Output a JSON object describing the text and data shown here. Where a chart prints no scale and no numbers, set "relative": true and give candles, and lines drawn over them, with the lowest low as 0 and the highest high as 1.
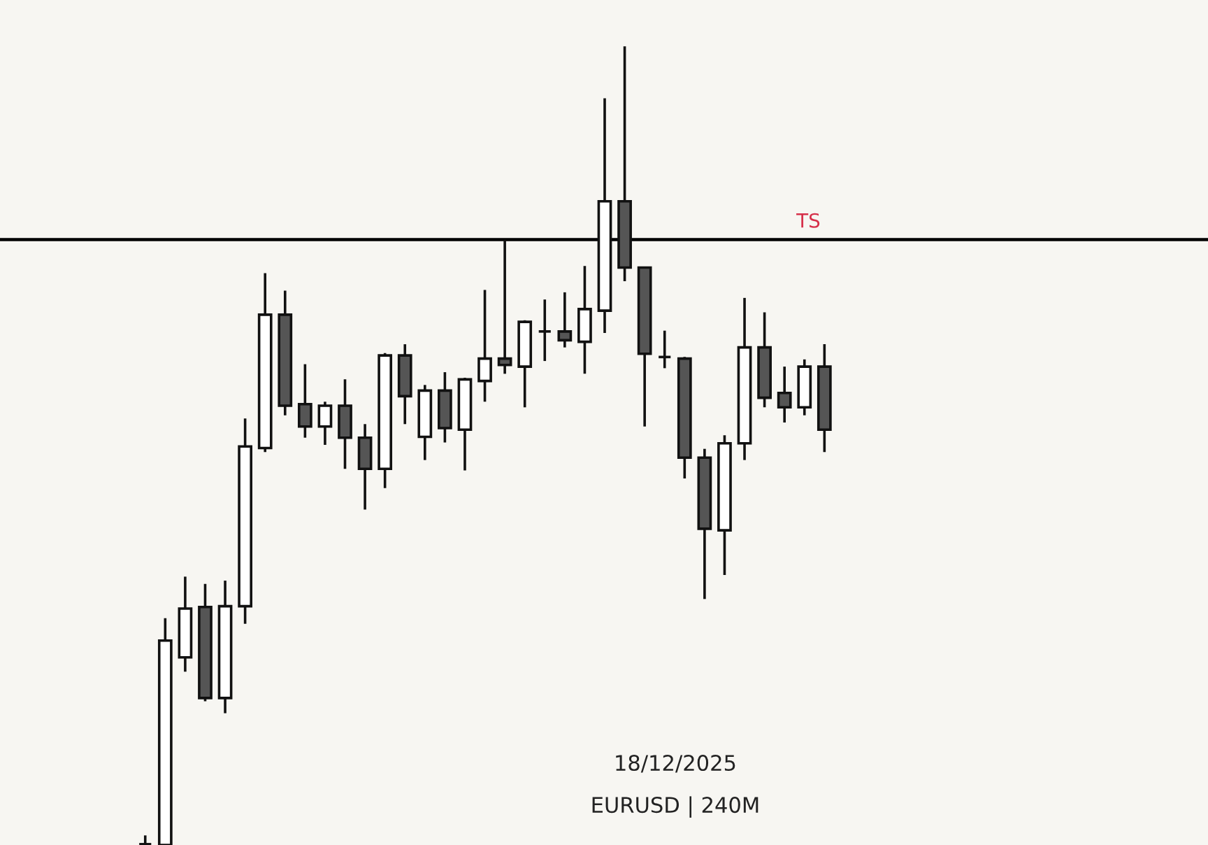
{
  "chart_data": {
    "type": "candlestick",
    "relative": true,
    "categories": [
      null,
      null,
      null,
      null,
      null,
      null,
      null,
      null,
      null,
      null,
      null,
      null,
      null,
      null,
      null,
      null,
      null,
      null,
      null,
      null,
      null,
      null,
      null,
      null,
      null,
      null,
      null,
      null,
      null,
      null,
      null,
      null,
      null,
      null,
      null
    ],
    "ohlc": [
      [
        0.001,
        0.012,
        0,
        0.001
      ],
      [
        0,
        0.284,
        0,
        0.256
      ],
      [
        0.235,
        0.336,
        0.217,
        0.296
      ],
      [
        0.298,
        0.327,
        0.18,
        0.184
      ],
      [
        0.184,
        0.331,
        0.165,
        0.299
      ],
      [
        0.299,
        0.534,
        0.277,
        0.499
      ],
      [
        0.497,
        0.716,
        0.492,
        0.664
      ],
      [
        0.664,
        0.694,
        0.538,
        0.55
      ],
      [
        0.552,
        0.602,
        0.51,
        0.524
      ],
      [
        0.524,
        0.555,
        0.501,
        0.55
      ],
      [
        0.55,
        0.583,
        0.471,
        0.51
      ],
      [
        0.51,
        0.527,
        0.42,
        0.471
      ],
      [
        0.471,
        0.616,
        0.447,
        0.613
      ],
      [
        0.613,
        0.627,
        0.527,
        0.562
      ],
      [
        0.511,
        0.576,
        0.482,
        0.569
      ],
      [
        0.569,
        0.592,
        0.504,
        0.522
      ],
      [
        0.52,
        0.585,
        0.469,
        0.583
      ],
      [
        0.581,
        0.695,
        0.555,
        0.609
      ],
      [
        0.609,
        0.758,
        0.59,
        0.601
      ],
      [
        0.599,
        0.657,
        0.548,
        0.655
      ],
      [
        0.643,
        0.683,
        0.606,
        0.643
      ],
      [
        0.643,
        0.692,
        0.623,
        0.632
      ],
      [
        0.63,
        0.725,
        0.59,
        0.671
      ],
      [
        0.669,
        0.935,
        0.641,
        0.806
      ],
      [
        0.806,
        1,
        0.706,
        0.723
      ],
      [
        0.723,
        0.723,
        0.524,
        0.615
      ],
      [
        0.611,
        0.644,
        0.597,
        0.611
      ],
      [
        0.609,
        0.611,
        0.459,
        0.485
      ],
      [
        0.485,
        0.496,
        0.308,
        0.396
      ],
      [
        0.394,
        0.513,
        0.338,
        0.503
      ],
      [
        0.503,
        0.685,
        0.482,
        0.623
      ],
      [
        0.623,
        0.667,
        0.548,
        0.56
      ],
      [
        0.566,
        0.599,
        0.529,
        0.548
      ],
      [
        0.548,
        0.608,
        0.538,
        0.599
      ],
      [
        0.599,
        0.627,
        0.492,
        0.52
      ]
    ],
    "colors": [
      "#111111",
      "#ffffff",
      "#ffffff",
      "#555555",
      "#ffffff",
      "#ffffff",
      "#ffffff",
      "#555555",
      "#555555",
      "#ffffff",
      "#555555",
      "#555555",
      "#ffffff",
      "#555555",
      "#ffffff",
      "#555555",
      "#ffffff",
      "#ffffff",
      "#555555",
      "#ffffff",
      "#111111",
      "#555555",
      "#ffffff",
      "#ffffff",
      "#555555",
      "#555555",
      "#111111",
      "#555555",
      "#555555",
      "#ffffff",
      "#ffffff",
      "#555555",
      "#555555",
      "#ffffff",
      "#555555"
    ],
    "ref_lines": [
      {
        "axis": "y",
        "value": 0.758,
        "label": "TS",
        "color": "#000000"
      }
    ],
    "annotations": [
      "18/12/2025",
      "EURUSD | 240M"
    ]
  }
}
